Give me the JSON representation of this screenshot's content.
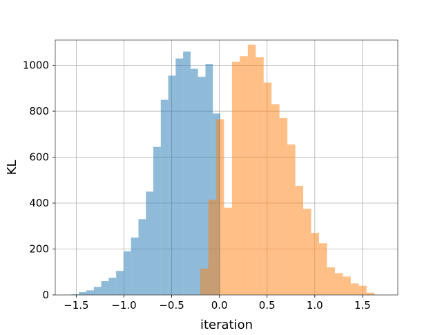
{
  "chart_data": {
    "type": "histogram",
    "xlabel": "iteration",
    "ylabel": "KL",
    "xlim": [
      -1.72,
      1.87
    ],
    "ylim": [
      0,
      1110
    ],
    "x_ticks": [
      -1.5,
      -1.0,
      -0.5,
      0.0,
      0.5,
      1.0,
      1.5
    ],
    "x_tick_labels": [
      "−1.5",
      "−1.0",
      "−0.5",
      "0.0",
      "0.5",
      "1.0",
      "1.5"
    ],
    "y_ticks": [
      0,
      200,
      400,
      600,
      800,
      1000
    ],
    "y_tick_labels": [
      "0",
      "200",
      "400",
      "600",
      "800",
      "1000"
    ],
    "grid": true,
    "series": [
      {
        "color": "#1f77b4",
        "opacity": 0.5,
        "bin_edges": [
          -1.55,
          -1.472,
          -1.394,
          -1.316,
          -1.238,
          -1.16,
          -1.082,
          -1.004,
          -0.926,
          -0.848,
          -0.77,
          -0.692,
          -0.614,
          -0.536,
          -0.458,
          -0.38,
          -0.302,
          -0.224,
          -0.146,
          -0.068,
          0.01
        ],
        "counts": [
          3,
          12,
          20,
          35,
          60,
          75,
          105,
          190,
          250,
          330,
          450,
          645,
          850,
          955,
          1030,
          1060,
          985,
          950,
          1005,
          790
        ]
      },
      {
        "color": "#ff7f0e",
        "opacity": 0.5,
        "bin_edges": [
          -0.2,
          -0.117,
          -0.034,
          0.049,
          0.132,
          0.215,
          0.298,
          0.381,
          0.464,
          0.547,
          0.63,
          0.713,
          0.796,
          0.879,
          0.962,
          1.045,
          1.128,
          1.211,
          1.294,
          1.377,
          1.46,
          1.543,
          1.626
        ],
        "counts": [
          115,
          415,
          765,
          380,
          1015,
          1040,
          1090,
          1035,
          925,
          830,
          770,
          655,
          475,
          375,
          270,
          225,
          120,
          95,
          80,
          50,
          40,
          10
        ]
      }
    ]
  }
}
